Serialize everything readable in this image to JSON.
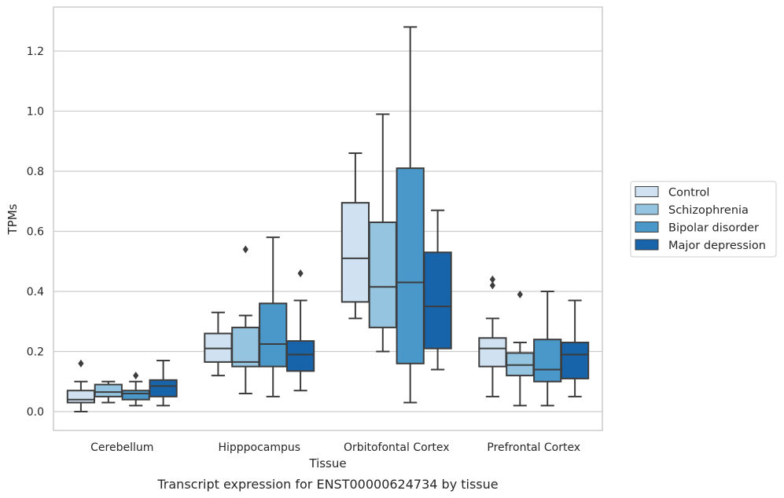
{
  "caption": "Transcript expression for ENST00000624734 by tissue",
  "chart_data": {
    "type": "boxplot",
    "title": "",
    "xlabel": "Tissue",
    "ylabel": "TPMs",
    "ylim": [
      -0.06,
      1.35
    ],
    "yticks": [
      0.0,
      0.2,
      0.4,
      0.6,
      0.8,
      1.0,
      1.2
    ],
    "ytick_labels": [
      "0.0",
      "0.2",
      "0.4",
      "0.6",
      "0.8",
      "1.0",
      "1.2"
    ],
    "grid": "horizontal",
    "legend_position": "right",
    "categories": [
      "Cerebellum",
      "Hipppocampus",
      "Orbitofontal Cortex",
      "Prefrontal Cortex"
    ],
    "series": [
      {
        "name": "Control",
        "color": "#d0e1f2",
        "boxes": [
          {
            "whislo": 0.0,
            "q1": 0.03,
            "med": 0.04,
            "q3": 0.07,
            "whishi": 0.1,
            "fliers": [
              0.16
            ]
          },
          {
            "whislo": 0.12,
            "q1": 0.165,
            "med": 0.21,
            "q3": 0.26,
            "whishi": 0.33,
            "fliers": []
          },
          {
            "whislo": 0.31,
            "q1": 0.365,
            "med": 0.51,
            "q3": 0.695,
            "whishi": 0.86,
            "fliers": []
          },
          {
            "whislo": 0.05,
            "q1": 0.15,
            "med": 0.21,
            "q3": 0.245,
            "whishi": 0.31,
            "fliers": [
              0.42,
              0.44
            ]
          }
        ]
      },
      {
        "name": "Schizophrenia",
        "color": "#94c4df",
        "boxes": [
          {
            "whislo": 0.03,
            "q1": 0.05,
            "med": 0.065,
            "q3": 0.09,
            "whishi": 0.1,
            "fliers": []
          },
          {
            "whislo": 0.06,
            "q1": 0.15,
            "med": 0.165,
            "q3": 0.28,
            "whishi": 0.32,
            "fliers": [
              0.54
            ]
          },
          {
            "whislo": 0.2,
            "q1": 0.28,
            "med": 0.415,
            "q3": 0.63,
            "whishi": 0.99,
            "fliers": []
          },
          {
            "whislo": 0.02,
            "q1": 0.12,
            "med": 0.155,
            "q3": 0.195,
            "whishi": 0.23,
            "fliers": [
              0.39
            ]
          }
        ]
      },
      {
        "name": "Bipolar disorder",
        "color": "#4a98c9",
        "boxes": [
          {
            "whislo": 0.02,
            "q1": 0.04,
            "med": 0.06,
            "q3": 0.07,
            "whishi": 0.1,
            "fliers": [
              0.12
            ]
          },
          {
            "whislo": 0.05,
            "q1": 0.15,
            "med": 0.225,
            "q3": 0.36,
            "whishi": 0.58,
            "fliers": []
          },
          {
            "whislo": 0.03,
            "q1": 0.16,
            "med": 0.43,
            "q3": 0.81,
            "whishi": 1.28,
            "fliers": []
          },
          {
            "whislo": 0.02,
            "q1": 0.1,
            "med": 0.14,
            "q3": 0.24,
            "whishi": 0.4,
            "fliers": []
          }
        ]
      },
      {
        "name": "Major depression",
        "color": "#1764ab",
        "boxes": [
          {
            "whislo": 0.02,
            "q1": 0.05,
            "med": 0.085,
            "q3": 0.105,
            "whishi": 0.17,
            "fliers": []
          },
          {
            "whislo": 0.07,
            "q1": 0.135,
            "med": 0.19,
            "q3": 0.235,
            "whishi": 0.37,
            "fliers": [
              0.46
            ]
          },
          {
            "whislo": 0.14,
            "q1": 0.21,
            "med": 0.35,
            "q3": 0.53,
            "whishi": 0.67,
            "fliers": []
          },
          {
            "whislo": 0.05,
            "q1": 0.11,
            "med": 0.19,
            "q3": 0.23,
            "whishi": 0.37,
            "fliers": []
          }
        ]
      }
    ]
  }
}
